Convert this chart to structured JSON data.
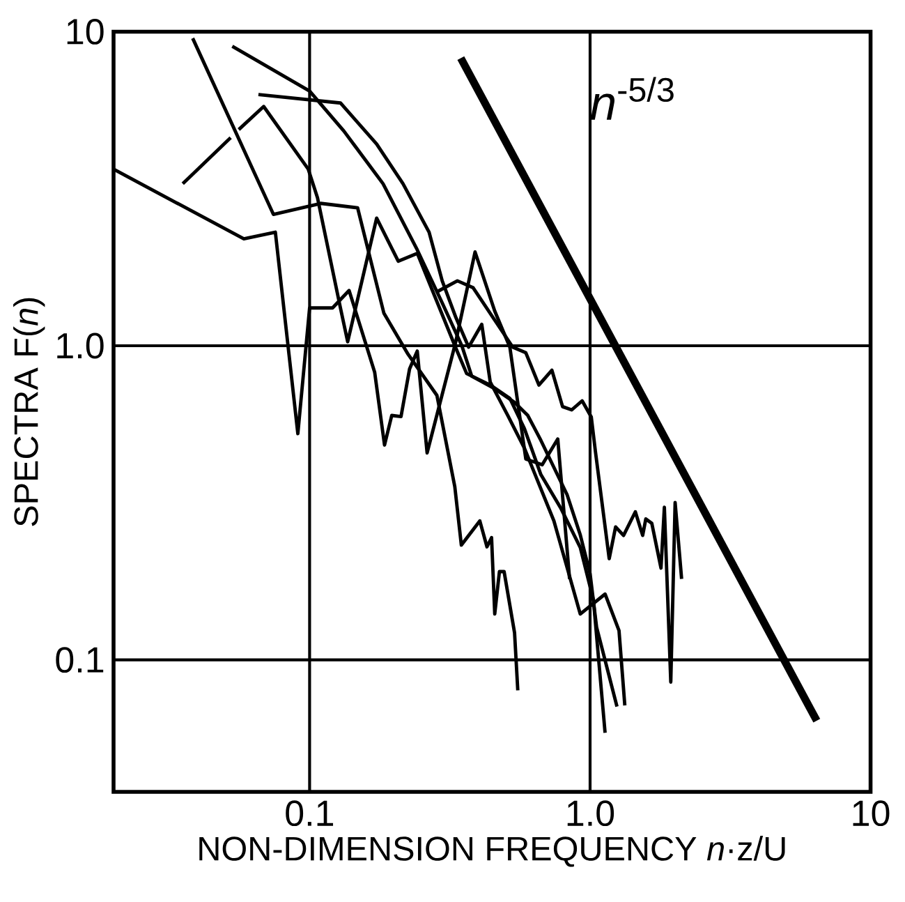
{
  "chart_data": {
    "type": "line",
    "xlabel": "NON-DIMENSION FREQUENCY   *n*·z/U",
    "ylabel": "SPECTRA   F(*n*)",
    "log": "xy",
    "grid": true,
    "xlim": [
      0.02,
      10
    ],
    "ylim": [
      0.038,
      10
    ],
    "xticks": [
      0.1,
      {
        "value": 1,
        "label": "1.0"
      },
      10
    ],
    "yticks": [
      0.1,
      {
        "value": 1,
        "label": "1.0"
      },
      10
    ],
    "series": [
      {
        "color": "#000000",
        "x": [
          0.053,
          0.1,
          0.1324,
          0.1828,
          0.242,
          0.297,
          0.349,
          0.3785,
          0.4572,
          0.5379,
          0.5998,
          0.6676,
          0.743,
          0.8276,
          0.9225,
          1.0,
          1.055,
          1.247
        ],
        "values": [
          8.99,
          6.47,
          4.83,
          3.28,
          2.02,
          1.37,
          1.0,
          0.8,
          0.73,
          0.66,
          0.6,
          0.5,
          0.41,
          0.336,
          0.25,
          0.188,
          0.127,
          0.071
        ]
      },
      {
        "color": "#000000",
        "x": [
          0.0657,
          0.1288,
          0.1734,
          0.2153,
          0.2667,
          0.297,
          0.3311,
          0.369,
          0.411,
          0.4406,
          0.509,
          0.5832,
          0.743,
          0.9225,
          1.131,
          1.268,
          1.33
        ],
        "values": [
          6.31,
          5.93,
          4.39,
          3.28,
          2.3,
          1.61,
          1.24,
          0.99,
          1.17,
          0.766,
          0.6,
          0.472,
          0.277,
          0.14,
          0.162,
          0.124,
          0.0716
        ]
      },
      {
        "color": "#000000",
        "x": [
          0.2864,
          0.3365,
          0.383,
          0.53,
          0.59,
          0.657,
          0.731,
          0.798,
          0.86,
          0.937,
          1.01,
          1.045,
          1.17,
          1.233,
          1.316,
          1.45,
          1.54,
          1.58,
          1.66,
          1.79,
          1.84,
          1.94,
          2.01,
          2.12
        ],
        "values": [
          1.49,
          1.61,
          1.53,
          0.99,
          0.95,
          0.75,
          0.836,
          0.64,
          0.625,
          0.668,
          0.593,
          0.46,
          0.21,
          0.265,
          0.249,
          0.296,
          0.249,
          0.281,
          0.272,
          0.196,
          0.306,
          0.085,
          0.317,
          0.181
        ]
      },
      {
        "color": "#000000",
        "x": [
          0.02,
          0.0583,
          0.0755,
          0.0908,
          0.1,
          0.1207,
          0.1383,
          0.1706,
          0.185,
          0.1963,
          0.2118,
          0.2272,
          0.242,
          0.2624,
          0.3311,
          0.389,
          0.4572,
          0.5176,
          0.59,
          0.675,
          0.767,
          0.845
        ],
        "values": [
          3.65,
          2.19,
          2.3,
          0.525,
          1.32,
          1.32,
          1.5,
          0.824,
          0.483,
          0.6,
          0.595,
          0.844,
          0.962,
          0.456,
          1.02,
          1.99,
          1.29,
          0.99,
          0.436,
          0.418,
          0.505,
          0.181
        ]
      },
      {
        "color": "#000000",
        "x": [
          0.0353,
          0.0523,
          0.054,
          0.0559,
          0.0686,
          0.0989,
          0.1067,
          0.1288,
          0.1367,
          0.1734,
          0.207,
          0.242,
          0.3311,
          0.363,
          0.4406,
          0.5176,
          0.5832,
          0.6676,
          0.785,
          0.9225,
          1.028,
          1.131
        ],
        "values": [
          3.28,
          4.6,
          null,
          4.88,
          5.78,
          3.65,
          2.96,
          1.32,
          1.03,
          2.55,
          1.86,
          1.97,
          0.99,
          0.816,
          0.75,
          0.68,
          0.545,
          0.389,
          0.305,
          0.228,
          0.155,
          0.0586
        ]
      },
      {
        "color": "#000000",
        "x": [
          0.0383,
          0.0743,
          0.1096,
          0.1483,
          0.184,
          0.2244,
          0.2844,
          0.3294,
          0.3475,
          0.4045,
          0.4289,
          0.4454,
          0.4572,
          0.4751,
          0.4937,
          0.5379,
          0.5524
        ],
        "values": [
          9.53,
          2.62,
          2.84,
          2.75,
          1.27,
          0.94,
          0.695,
          0.356,
          0.232,
          0.277,
          0.229,
          0.245,
          0.14,
          0.191,
          0.191,
          0.122,
          0.08
        ]
      },
      {
        "name": "*n*$^{-5/3}$",
        "color": "#000000",
        "x": [
          0.346,
          6.43
        ],
        "values": [
          8.24,
          0.064
        ]
      }
    ]
  }
}
